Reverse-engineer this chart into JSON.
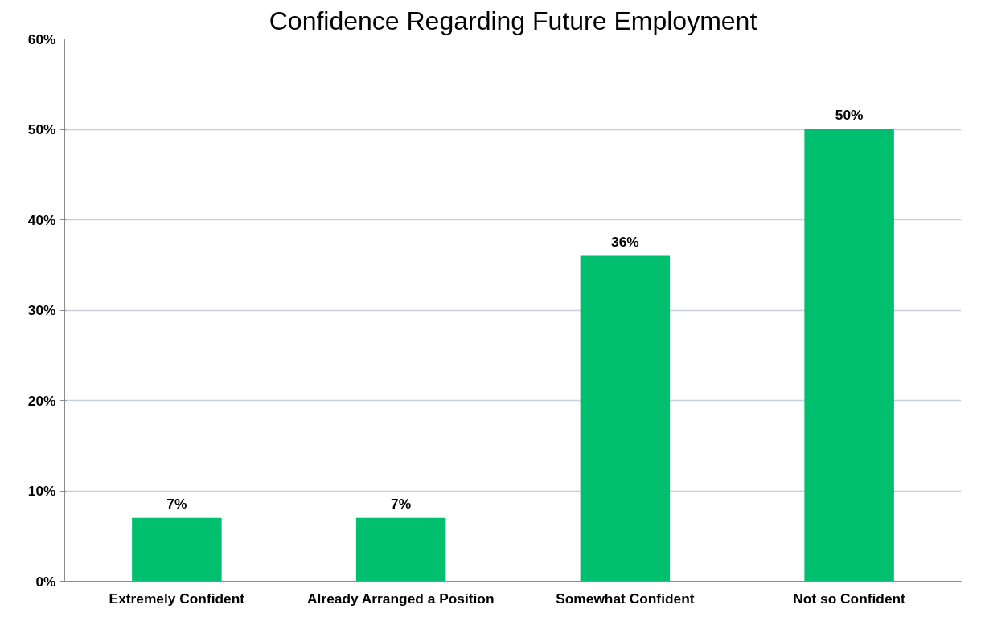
{
  "chart_data": {
    "type": "bar",
    "title": "Confidence Regarding Future Employment",
    "categories": [
      "Extremely Confident",
      "Already Arranged a Position",
      "Somewhat Confident",
      "Not so Confident"
    ],
    "values": [
      7,
      7,
      36,
      50
    ],
    "value_labels": [
      "7%",
      "7%",
      "36%",
      "50%"
    ],
    "color": "#00bf6f",
    "ylim": [
      0,
      60
    ],
    "yticks": [
      {
        "value": 0,
        "label": "0%"
      },
      {
        "value": 10,
        "label": "10%"
      },
      {
        "value": 20,
        "label": "20%"
      },
      {
        "value": 30,
        "label": "30%"
      },
      {
        "value": 40,
        "label": "40%"
      },
      {
        "value": 50,
        "label": "50%"
      },
      {
        "value": 60,
        "label": "60%"
      }
    ],
    "grid": "y"
  }
}
